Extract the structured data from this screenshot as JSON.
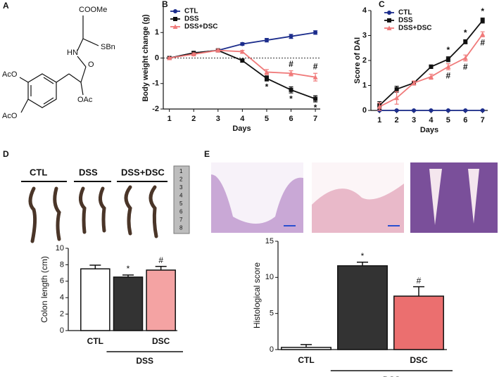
{
  "panel_labels": [
    "A",
    "B",
    "C",
    "D",
    "E"
  ],
  "structure": {
    "labels": [
      "COOMe",
      "HN",
      "SBn",
      "O",
      "AcO",
      "AcO",
      "OAc"
    ]
  },
  "photos": {
    "colon_groups": [
      "CTL",
      "DSS",
      "DSS+DSC"
    ],
    "ruler": [
      "1",
      "2",
      "3",
      "4",
      "5",
      "6",
      "7",
      "8"
    ]
  },
  "chart_data": [
    {
      "type": "line",
      "ylabel": "Body weight change (g)",
      "xlabel": "Days",
      "x": [
        1,
        2,
        3,
        4,
        5,
        6,
        7
      ],
      "xlim": [
        0.75,
        7.2
      ],
      "xticks": [
        1,
        2,
        3,
        4,
        5,
        6,
        7
      ],
      "ylim": [
        -2,
        2
      ],
      "yticks": [
        -2,
        -1,
        0,
        1
      ],
      "zero_line": true,
      "legend": "upper left",
      "series": [
        {
          "name": "CTL",
          "color": "#1c2d8c",
          "marker": "circle",
          "values": [
            0,
            0.2,
            0.3,
            0.55,
            0.7,
            0.85,
            1.0
          ],
          "errors": [
            0.03,
            0.05,
            0.05,
            0.05,
            0.07,
            0.08,
            0.07
          ]
        },
        {
          "name": "DSS",
          "color": "#111111",
          "marker": "square",
          "values": [
            0,
            0.2,
            0.3,
            -0.1,
            -0.8,
            -1.25,
            -1.6
          ],
          "errors": [
            0.03,
            0.04,
            0.05,
            0.06,
            0.1,
            0.12,
            0.12
          ],
          "annotations": [
            null,
            null,
            null,
            null,
            "*",
            "*",
            "*"
          ],
          "annotation_position": "below"
        },
        {
          "name": "DSS+DSC",
          "color": "#f07a7a",
          "marker": "triangle",
          "values": [
            0,
            0.15,
            0.3,
            0.25,
            -0.55,
            -0.6,
            -0.75
          ],
          "errors": [
            0.03,
            0.05,
            0.05,
            0.05,
            0.1,
            0.1,
            0.15
          ],
          "annotations": [
            null,
            null,
            null,
            null,
            null,
            "#",
            "#"
          ],
          "annotation_position": "above"
        }
      ]
    },
    {
      "type": "line",
      "ylabel": "Score of DAI",
      "xlabel": "Days",
      "x": [
        1,
        2,
        3,
        4,
        5,
        6,
        7
      ],
      "xlim": [
        0.5,
        7.3
      ],
      "xticks": [
        1,
        2,
        3,
        4,
        5,
        6,
        7
      ],
      "ylim": [
        0,
        4
      ],
      "yticks": [
        0,
        1,
        2,
        3,
        4
      ],
      "zero_line": false,
      "legend": "upper left",
      "series": [
        {
          "name": "CTL",
          "color": "#1c2d8c",
          "marker": "circle",
          "values": [
            0,
            0,
            0,
            0,
            0,
            0,
            0
          ],
          "errors": [
            0.02,
            0.02,
            0.02,
            0.02,
            0.02,
            0.02,
            0.02
          ]
        },
        {
          "name": "DSS",
          "color": "#111111",
          "marker": "square",
          "values": [
            0.2,
            0.85,
            1.1,
            1.75,
            2.05,
            2.75,
            3.6
          ],
          "errors": [
            0.15,
            0.12,
            0.08,
            0.07,
            0.1,
            0.08,
            0.1
          ],
          "annotations": [
            null,
            null,
            null,
            null,
            "*",
            "*",
            "*"
          ],
          "annotation_position": "above"
        },
        {
          "name": "DSS+DSC",
          "color": "#f07a7a",
          "marker": "triangle",
          "values": [
            0.15,
            0.5,
            1.1,
            1.35,
            1.75,
            2.1,
            3.05
          ],
          "errors": [
            0.15,
            0.25,
            0.08,
            0.1,
            0.12,
            0.12,
            0.1
          ],
          "annotations": [
            null,
            null,
            null,
            null,
            "#",
            "#",
            "#"
          ],
          "annotation_position": "below"
        }
      ]
    },
    {
      "type": "bar",
      "ylabel": "Colon length (cm)",
      "categories": [
        "CTL",
        null,
        "DSC"
      ],
      "group_label": "DSS",
      "values": [
        7.5,
        6.5,
        7.35
      ],
      "errors": [
        0.45,
        0.25,
        0.45
      ],
      "colors": [
        "#ffffff",
        "#333333",
        "#f4a3a3"
      ],
      "annotations": [
        null,
        "*",
        "#"
      ],
      "ylim": [
        0,
        10
      ],
      "yticks": [
        0,
        2,
        4,
        6,
        8,
        10
      ]
    },
    {
      "type": "bar",
      "ylabel": "Histological  score",
      "categories": [
        "CTL",
        null,
        "DSC"
      ],
      "group_label": "DSS",
      "values": [
        0.3,
        11.6,
        7.4
      ],
      "errors": [
        0.4,
        0.5,
        1.3
      ],
      "colors": [
        "#ffffff",
        "#333333",
        "#eb6f6f"
      ],
      "annotations": [
        null,
        "*",
        "#"
      ],
      "ylim": [
        0,
        15
      ],
      "yticks": [
        0,
        5,
        10,
        15
      ]
    }
  ]
}
